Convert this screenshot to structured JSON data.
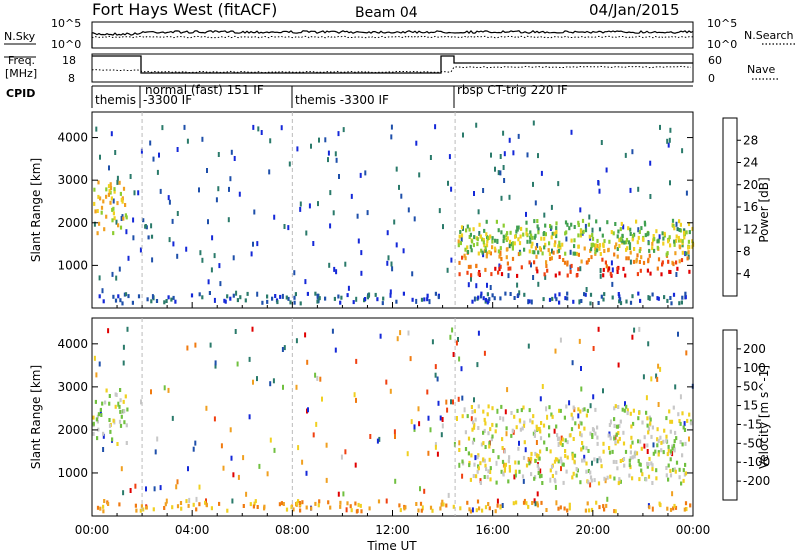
{
  "header": {
    "title": "Fort Hays West (fitACF)",
    "beam": "Beam 04",
    "date": "04/Jan/2015"
  },
  "top_panels": {
    "nsky_label": "N.Sky",
    "nsky_ticks_left": [
      "10^5",
      "10^0"
    ],
    "nsearch_label": "N.Search",
    "nsearch_ticks_right": [
      "10^5",
      "10^0"
    ],
    "freq_label_1": "Freq.",
    "freq_label_2": "[MHz]",
    "freq_ticks": [
      "18",
      "8"
    ],
    "nave_label": "Nave",
    "nave_ticks": [
      "60",
      "0"
    ],
    "cpid_label": "CPID",
    "cpid_labels": [
      {
        "text": "themis"
      },
      {
        "text": "normal (fast) 151 IF"
      },
      {
        "text": "-3300 IF"
      },
      {
        "text": "themis -3300 IF"
      },
      {
        "text": "rbsp CT-trig 220 IF"
      }
    ]
  },
  "chart_data": [
    {
      "type": "heatmap",
      "name": "power",
      "ylabel": "Slant Range [km]",
      "ylim": [
        0,
        4600
      ],
      "yticks": [
        1000,
        2000,
        3000,
        4000
      ],
      "xlim": [
        0,
        24
      ],
      "colorbar": {
        "label": "Power [dB]",
        "ticks": [
          "4",
          "8",
          "12",
          "16",
          "20",
          "24",
          "28"
        ],
        "colors": [
          "#1428d8",
          "#1e4faa",
          "#2a7a6a",
          "#40a050",
          "#8ccc30",
          "#f0d020",
          "#f0a020",
          "#f07a10",
          "#f04010",
          "#e00000"
        ]
      },
      "regions": [
        {
          "t0": 0.0,
          "t1": 1.4,
          "r0": 1700,
          "r1": 3000,
          "level": 5
        },
        {
          "t0": 14.6,
          "t1": 24.0,
          "r0": 800,
          "r1": 1900,
          "level": 8
        },
        {
          "t0": 14.6,
          "t1": 24.0,
          "r0": 1300,
          "r1": 2100,
          "level": 4
        },
        {
          "t0": 2.0,
          "t1": 2.4,
          "r0": 1600,
          "r1": 2200,
          "level": 1
        },
        {
          "t0": 0.0,
          "t1": 24.0,
          "r0": 150,
          "r1": 400,
          "level": 1
        }
      ]
    },
    {
      "type": "heatmap",
      "name": "velocity",
      "ylabel": "Slant Range [km]",
      "ylim": [
        0,
        4600
      ],
      "yticks": [
        1000,
        2000,
        3000,
        4000
      ],
      "xlim": [
        0,
        24
      ],
      "xlabel": "Time UT",
      "xticks": [
        "00:00",
        "04:00",
        "08:00",
        "12:00",
        "16:00",
        "20:00",
        "00:00"
      ],
      "colorbar": {
        "label": "Velocity [m s^-1]",
        "ticks": [
          "200",
          "100",
          "50",
          "15",
          "-15",
          "-50",
          "-100",
          "-200"
        ],
        "colors": [
          "#1428d8",
          "#1e4faa",
          "#2a7a6a",
          "#70c040",
          "#c8c8c8",
          "#f0d020",
          "#f0a020",
          "#f07a10",
          "#f04010",
          "#e00000"
        ]
      },
      "regions": [
        {
          "t0": 0.0,
          "t1": 1.4,
          "r0": 1700,
          "r1": 3000,
          "level": 4
        },
        {
          "t0": 14.6,
          "t1": 24.0,
          "r0": 800,
          "r1": 2600,
          "level": 4
        },
        {
          "t0": 0.0,
          "t1": 24.0,
          "r0": 150,
          "r1": 400,
          "level": 6
        }
      ]
    }
  ]
}
